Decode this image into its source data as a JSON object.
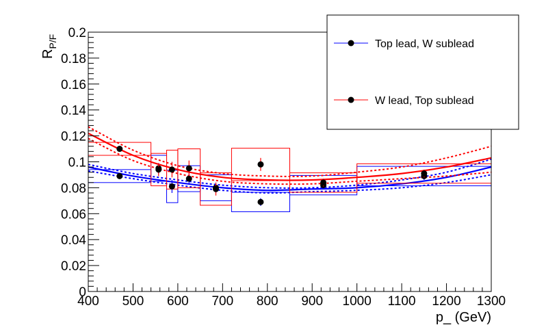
{
  "chart_data": {
    "type": "scatter",
    "title": "",
    "xlabel": "p_ (GeV)",
    "ylabel_main": "R",
    "ylabel_sub": "P/F",
    "xlim": [
      400,
      1300
    ],
    "ylim": [
      0,
      0.2
    ],
    "x_ticks": [
      "400",
      "500",
      "600",
      "700",
      "800",
      "900",
      "1000",
      "1100",
      "1200",
      "1300"
    ],
    "y_ticks": [
      "0",
      "0.02",
      "0.04",
      "0.06",
      "0.08",
      "0.1",
      "0.12",
      "0.14",
      "0.16",
      "0.18",
      "0.2"
    ],
    "grid": false,
    "legend_position": "top-right",
    "series": [
      {
        "name": "Top lead, W sublead",
        "color": "#0000ff",
        "points": [
          {
            "x": 470,
            "y": 0.089,
            "xlo": 400,
            "xhi": 540,
            "err": 0.002
          },
          {
            "x": 557,
            "y": 0.095,
            "xlo": 540,
            "xhi": 575,
            "err": 0.004
          },
          {
            "x": 587,
            "y": 0.081,
            "xlo": 575,
            "xhi": 600,
            "err": 0.005
          },
          {
            "x": 625,
            "y": 0.087,
            "xlo": 600,
            "xhi": 650,
            "err": 0.004
          },
          {
            "x": 685,
            "y": 0.08,
            "xlo": 650,
            "xhi": 720,
            "err": 0.004
          },
          {
            "x": 785,
            "y": 0.069,
            "xlo": 720,
            "xhi": 850,
            "err": 0.003
          },
          {
            "x": 925,
            "y": 0.082,
            "xlo": 850,
            "xhi": 1000,
            "err": 0.003
          },
          {
            "x": 1150,
            "y": 0.089,
            "xlo": 1000,
            "xhi": 1300,
            "err": 0.003
          }
        ],
        "fit_central": [
          {
            "x": 400,
            "y": 0.096
          },
          {
            "x": 500,
            "y": 0.089
          },
          {
            "x": 600,
            "y": 0.084
          },
          {
            "x": 700,
            "y": 0.08
          },
          {
            "x": 800,
            "y": 0.078
          },
          {
            "x": 900,
            "y": 0.079
          },
          {
            "x": 1000,
            "y": 0.08
          },
          {
            "x": 1100,
            "y": 0.083
          },
          {
            "x": 1200,
            "y": 0.088
          },
          {
            "x": 1300,
            "y": 0.096
          }
        ],
        "fit_upper": [
          {
            "x": 400,
            "y": 0.098
          },
          {
            "x": 500,
            "y": 0.091
          },
          {
            "x": 600,
            "y": 0.086
          },
          {
            "x": 700,
            "y": 0.082
          },
          {
            "x": 800,
            "y": 0.08
          },
          {
            "x": 900,
            "y": 0.08
          },
          {
            "x": 1000,
            "y": 0.082
          },
          {
            "x": 1100,
            "y": 0.086
          },
          {
            "x": 1200,
            "y": 0.092
          },
          {
            "x": 1300,
            "y": 0.102
          }
        ],
        "fit_lower": [
          {
            "x": 400,
            "y": 0.093
          },
          {
            "x": 500,
            "y": 0.087
          },
          {
            "x": 600,
            "y": 0.082
          },
          {
            "x": 700,
            "y": 0.078
          },
          {
            "x": 800,
            "y": 0.076
          },
          {
            "x": 900,
            "y": 0.077
          },
          {
            "x": 1000,
            "y": 0.078
          },
          {
            "x": 1100,
            "y": 0.08
          },
          {
            "x": 1200,
            "y": 0.084
          },
          {
            "x": 1300,
            "y": 0.09
          }
        ]
      },
      {
        "name": "W lead, Top sublead",
        "color": "#ff0000",
        "points": [
          {
            "x": 470,
            "y": 0.11,
            "xlo": 400,
            "xhi": 540,
            "err": 0.002
          },
          {
            "x": 557,
            "y": 0.094,
            "xlo": 540,
            "xhi": 575,
            "err": 0.005
          },
          {
            "x": 587,
            "y": 0.094,
            "xlo": 575,
            "xhi": 600,
            "err": 0.006
          },
          {
            "x": 625,
            "y": 0.095,
            "xlo": 600,
            "xhi": 650,
            "err": 0.006
          },
          {
            "x": 685,
            "y": 0.079,
            "xlo": 650,
            "xhi": 720,
            "err": 0.005
          },
          {
            "x": 785,
            "y": 0.098,
            "xlo": 720,
            "xhi": 850,
            "err": 0.005
          },
          {
            "x": 925,
            "y": 0.084,
            "xlo": 850,
            "xhi": 1000,
            "err": 0.003
          },
          {
            "x": 1150,
            "y": 0.091,
            "xlo": 1000,
            "xhi": 1300,
            "err": 0.003
          }
        ],
        "fit_central": [
          {
            "x": 400,
            "y": 0.122
          },
          {
            "x": 500,
            "y": 0.105
          },
          {
            "x": 600,
            "y": 0.094
          },
          {
            "x": 700,
            "y": 0.088
          },
          {
            "x": 800,
            "y": 0.086
          },
          {
            "x": 900,
            "y": 0.086
          },
          {
            "x": 1000,
            "y": 0.088
          },
          {
            "x": 1100,
            "y": 0.091
          },
          {
            "x": 1200,
            "y": 0.096
          },
          {
            "x": 1300,
            "y": 0.103
          }
        ],
        "fit_upper": [
          {
            "x": 400,
            "y": 0.127
          },
          {
            "x": 500,
            "y": 0.109
          },
          {
            "x": 600,
            "y": 0.097
          },
          {
            "x": 700,
            "y": 0.091
          },
          {
            "x": 800,
            "y": 0.089
          },
          {
            "x": 900,
            "y": 0.089
          },
          {
            "x": 1000,
            "y": 0.092
          },
          {
            "x": 1100,
            "y": 0.096
          },
          {
            "x": 1200,
            "y": 0.103
          },
          {
            "x": 1300,
            "y": 0.112
          }
        ],
        "fit_lower": [
          {
            "x": 400,
            "y": 0.118
          },
          {
            "x": 500,
            "y": 0.101
          },
          {
            "x": 600,
            "y": 0.091
          },
          {
            "x": 700,
            "y": 0.085
          },
          {
            "x": 800,
            "y": 0.083
          },
          {
            "x": 900,
            "y": 0.083
          },
          {
            "x": 1000,
            "y": 0.085
          },
          {
            "x": 1100,
            "y": 0.087
          },
          {
            "x": 1200,
            "y": 0.089
          },
          {
            "x": 1300,
            "y": 0.092
          }
        ]
      }
    ]
  }
}
